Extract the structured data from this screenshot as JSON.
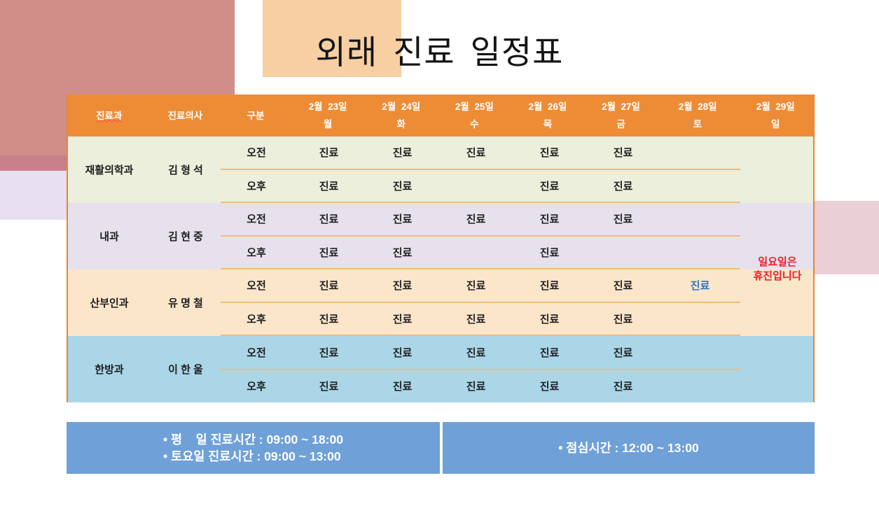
{
  "title": "외래 진료 일정표",
  "table": {
    "header": {
      "dept": "진료과",
      "doctor": "진료의사",
      "division": "구분",
      "days": [
        {
          "date": "2월  23일",
          "weekday": "월"
        },
        {
          "date": "2월  24일",
          "weekday": "화"
        },
        {
          "date": "2월  25일",
          "weekday": "수"
        },
        {
          "date": "2월  26일",
          "weekday": "목"
        },
        {
          "date": "2월  27일",
          "weekday": "금"
        },
        {
          "date": "2월  28일",
          "weekday": "토"
        },
        {
          "date": "2월  29일",
          "weekday": "일"
        }
      ]
    },
    "division_labels": {
      "morning": "오전",
      "afternoon": "오후"
    },
    "departments": [
      {
        "name": "재활의학과",
        "doctor": "김 형 석",
        "bg": "#EBEFDC",
        "morning": [
          {
            "text": "진료"
          },
          {
            "text": "진료"
          },
          {
            "text": "진료"
          },
          {
            "text": "진료"
          },
          {
            "text": "진료"
          },
          {
            "text": ""
          }
        ],
        "afternoon": [
          {
            "text": "진료"
          },
          {
            "text": "진료"
          },
          {
            "text": ""
          },
          {
            "text": "진료"
          },
          {
            "text": "진료"
          },
          {
            "text": ""
          }
        ]
      },
      {
        "name": "내과",
        "doctor": "김 현 중",
        "bg": "#E7E1EE",
        "morning": [
          {
            "text": "진료"
          },
          {
            "text": "진료"
          },
          {
            "text": "진료"
          },
          {
            "text": "진료"
          },
          {
            "text": "진료"
          },
          {
            "text": ""
          }
        ],
        "afternoon": [
          {
            "text": "진료"
          },
          {
            "text": "진료"
          },
          {
            "text": ""
          },
          {
            "text": "진료"
          },
          {
            "text": ""
          },
          {
            "text": ""
          }
        ]
      },
      {
        "name": "산부인과",
        "doctor": "유 명 철",
        "bg": "#FCE6CA",
        "morning": [
          {
            "text": "진료"
          },
          {
            "text": "진료"
          },
          {
            "text": "진료"
          },
          {
            "text": "진료"
          },
          {
            "text": "진료"
          },
          {
            "text": "진료",
            "color": "#2E75B6"
          }
        ],
        "afternoon": [
          {
            "text": "진료"
          },
          {
            "text": "진료"
          },
          {
            "text": "진료"
          },
          {
            "text": "진료"
          },
          {
            "text": "진료"
          },
          {
            "text": ""
          }
        ]
      },
      {
        "name": "한방과",
        "doctor": "이 한 울",
        "bg": "#ABD6E8",
        "morning": [
          {
            "text": "진료"
          },
          {
            "text": "진료"
          },
          {
            "text": "진료"
          },
          {
            "text": "진료"
          },
          {
            "text": "진료"
          },
          {
            "text": ""
          }
        ],
        "afternoon": [
          {
            "text": "진료"
          },
          {
            "text": "진료"
          },
          {
            "text": "진료"
          },
          {
            "text": "진료"
          },
          {
            "text": "진료"
          },
          {
            "text": ""
          }
        ]
      }
    ],
    "sunday_note": [
      "일요일은",
      "휴진입니다"
    ]
  },
  "footer": {
    "left_lines": [
      "• 평    일 진료시간 : 09:00 ~ 18:00",
      "• 토요일 진료시간 : 09:00 ~ 13:00"
    ],
    "right_lines": [
      "• 점심시간 : 12:00 ~ 13:00"
    ]
  },
  "colors": {
    "header_orange": "#EE8C35",
    "table_border_orange": "#E8862F",
    "row_separator_tan": "#F1BA7E",
    "bar_blue": "#6FA0D8",
    "note_red": "#EC1C24",
    "saturday_blue": "#2E75B6",
    "deco_salmon": "#D18E89",
    "deco_darkrose": "#C9808C",
    "deco_lavender": "#E7E0F0",
    "deco_peach": "#F7CFA3",
    "deco_pink": "#E9CDD6"
  }
}
